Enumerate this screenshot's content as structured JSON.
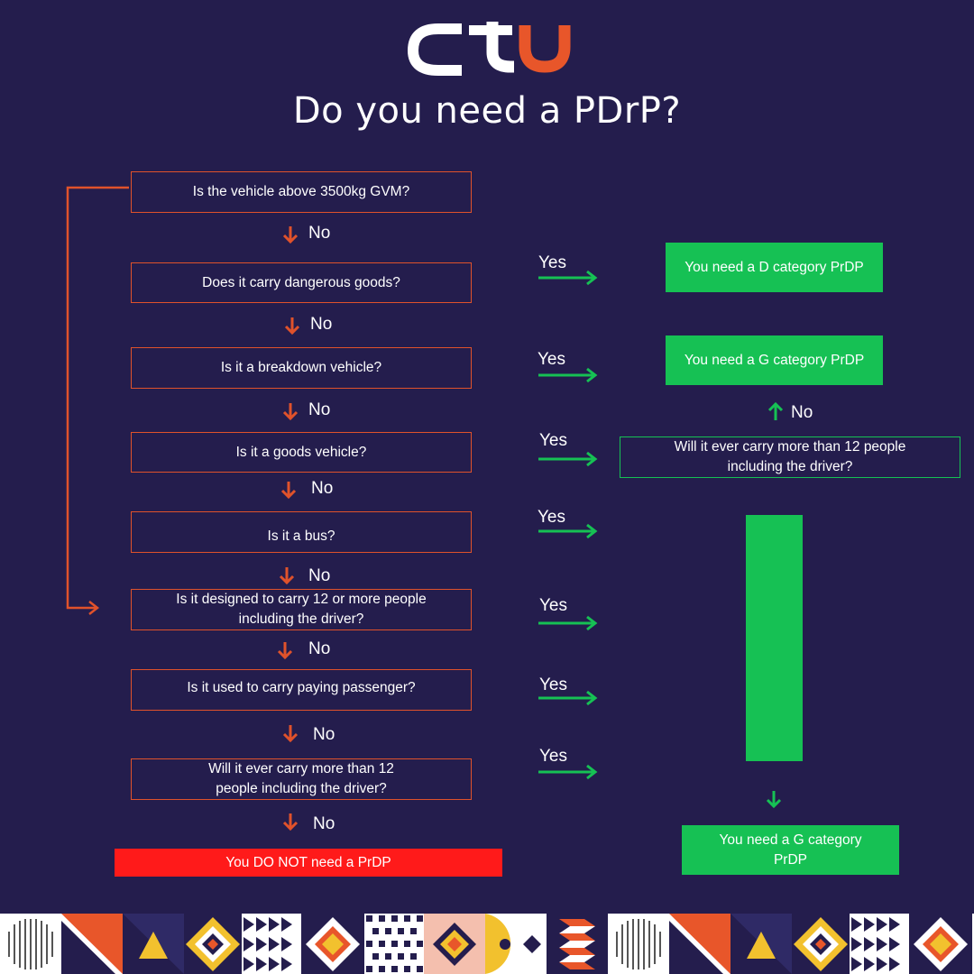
{
  "logo": {
    "text": "ctu",
    "colors": {
      "c": "#ffffff",
      "t": "#ffffff",
      "u": "#e8562a"
    }
  },
  "title": "Do you need a PDrP?",
  "colors": {
    "background": "#241d4d",
    "orange": "#e0522b",
    "green": "#16c154",
    "red": "#ff1a1a"
  },
  "questions": [
    "Is the vehicle above 3500kg GVM?",
    "Does it carry dangerous goods?",
    "Is it a breakdown vehicle?",
    "Is it a goods vehicle?",
    "Is it a bus?",
    "Is it designed to carry 12 or more people including the driver?",
    "Is it used to carry paying passenger?",
    "Will it ever carry more than 12 people including the driver?"
  ],
  "no_label": "No",
  "yes_label": "Yes",
  "results": {
    "d_category": "You need a D category PrDP",
    "g_category_top": "You need a G category PrDP",
    "g_category_bottom": "You need a G category PrDP",
    "not_needed": "You DO NOT need a PrDP"
  },
  "side_question": "Will it ever carry more than 12 people including the driver?"
}
